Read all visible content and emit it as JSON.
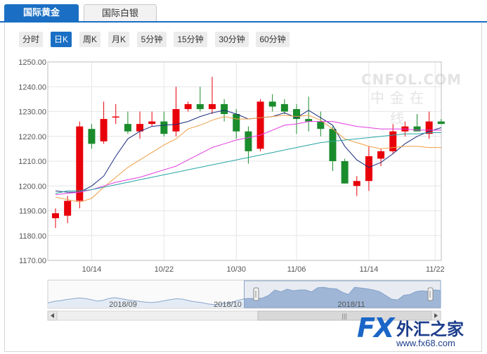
{
  "tabs": [
    {
      "label": "国际黄金",
      "active": true
    },
    {
      "label": "国际白银",
      "active": false
    }
  ],
  "periods": [
    {
      "label": "分时",
      "active": false
    },
    {
      "label": "日K",
      "active": true
    },
    {
      "label": "周K",
      "active": false
    },
    {
      "label": "月K",
      "active": false
    },
    {
      "label": "5分钟",
      "active": false
    },
    {
      "label": "15分钟",
      "active": false
    },
    {
      "label": "30分钟",
      "active": false
    },
    {
      "label": "60分钟",
      "active": false
    }
  ],
  "watermark": {
    "en": "CNFOL.COM",
    "cn": "中金在线"
  },
  "logo": {
    "fx": "FX",
    "cn": "外汇之家",
    "url": "www.fx68.com"
  },
  "colors": {
    "up": "#e8000b",
    "down": "#1a8c2c",
    "accent": "#1a6fc4",
    "ma5": "#1c2b7e",
    "ma10": "#f0a045",
    "ma20": "#e23be0",
    "ma60": "#27a5a5"
  },
  "chart_data": {
    "type": "candlestick",
    "ylim": [
      1170,
      1250
    ],
    "yticks": [
      1250,
      1240,
      1230,
      1220,
      1210,
      1200,
      1190,
      1180,
      1170
    ],
    "ytick_labels": [
      "1250.00",
      "1240.00",
      "1230.00",
      "1220.00",
      "1210.00",
      "1200.00",
      "1190.00",
      "1180.00",
      "1170.00"
    ],
    "xticks": [
      {
        "label": "10/14",
        "index": 3
      },
      {
        "label": "10/22",
        "index": 9
      },
      {
        "label": "10/30",
        "index": 15
      },
      {
        "label": "11/06",
        "index": 20
      },
      {
        "label": "11/14",
        "index": 26
      },
      {
        "label": "11/22",
        "index": 31.5
      }
    ],
    "grid": true,
    "candles": [
      {
        "o": 1187,
        "h": 1191,
        "l": 1183,
        "c": 1189
      },
      {
        "o": 1188,
        "h": 1196,
        "l": 1185,
        "c": 1194
      },
      {
        "o": 1194,
        "h": 1226,
        "l": 1191,
        "c": 1224
      },
      {
        "o": 1223,
        "h": 1225,
        "l": 1215,
        "c": 1217
      },
      {
        "o": 1218,
        "h": 1234,
        "l": 1217,
        "c": 1227
      },
      {
        "o": 1228,
        "h": 1233,
        "l": 1225,
        "c": 1228
      },
      {
        "o": 1225,
        "h": 1230,
        "l": 1221,
        "c": 1222
      },
      {
        "o": 1222,
        "h": 1230,
        "l": 1219,
        "c": 1225
      },
      {
        "o": 1225,
        "h": 1230,
        "l": 1224,
        "c": 1226
      },
      {
        "o": 1226,
        "h": 1230,
        "l": 1220,
        "c": 1221
      },
      {
        "o": 1222,
        "h": 1240,
        "l": 1220,
        "c": 1231
      },
      {
        "o": 1231,
        "h": 1234,
        "l": 1230,
        "c": 1233
      },
      {
        "o": 1233,
        "h": 1240,
        "l": 1230,
        "c": 1231
      },
      {
        "o": 1231,
        "h": 1244,
        "l": 1229,
        "c": 1233
      },
      {
        "o": 1233,
        "h": 1235,
        "l": 1226,
        "c": 1229
      },
      {
        "o": 1229,
        "h": 1231,
        "l": 1219,
        "c": 1222
      },
      {
        "o": 1222,
        "h": 1224,
        "l": 1209,
        "c": 1214
      },
      {
        "o": 1215,
        "h": 1235,
        "l": 1214,
        "c": 1234
      },
      {
        "o": 1234,
        "h": 1237,
        "l": 1230,
        "c": 1232
      },
      {
        "o": 1233,
        "h": 1235,
        "l": 1229,
        "c": 1230
      },
      {
        "o": 1231,
        "h": 1233,
        "l": 1221,
        "c": 1227
      },
      {
        "o": 1227,
        "h": 1236,
        "l": 1222,
        "c": 1226
      },
      {
        "o": 1226,
        "h": 1230,
        "l": 1220,
        "c": 1223
      },
      {
        "o": 1223,
        "h": 1224,
        "l": 1206,
        "c": 1210
      },
      {
        "o": 1210,
        "h": 1211,
        "l": 1201,
        "c": 1201
      },
      {
        "o": 1200,
        "h": 1204,
        "l": 1196,
        "c": 1202
      },
      {
        "o": 1202,
        "h": 1216,
        "l": 1198,
        "c": 1212
      },
      {
        "o": 1211,
        "h": 1215,
        "l": 1208,
        "c": 1214
      },
      {
        "o": 1214,
        "h": 1225,
        "l": 1213,
        "c": 1222
      },
      {
        "o": 1222,
        "h": 1226,
        "l": 1220,
        "c": 1224
      },
      {
        "o": 1224,
        "h": 1229,
        "l": 1222,
        "c": 1222
      },
      {
        "o": 1221,
        "h": 1230,
        "l": 1219,
        "c": 1226
      },
      {
        "o": 1226,
        "h": 1227,
        "l": 1225,
        "c": 1225
      }
    ],
    "ma_lines": [
      {
        "key": "ma5",
        "values": [
          1198,
          1197.5,
          1197.5,
          1200,
          1204,
          1212,
          1219,
          1222,
          1224,
          1224.5,
          1224.8,
          1226,
          1228,
          1229.5,
          1230.5,
          1229,
          1227,
          1227.5,
          1228,
          1229.5,
          1227.5,
          1230.5,
          1227.5,
          1224.5,
          1216,
          1210.5,
          1207.5,
          1209.5,
          1213,
          1217,
          1220,
          1222,
          1223.5
        ]
      },
      {
        "key": "ma10",
        "values": [
          1195.5,
          1194.5,
          1193.5,
          1195,
          1199.5,
          1203.5,
          1207.5,
          1210.5,
          1213.5,
          1216.5,
          1219,
          1223,
          1224.5,
          1226.5,
          1228,
          1227,
          1227,
          1227.5,
          1228,
          1228.5,
          1228,
          1228.5,
          1226.5,
          1223,
          1219,
          1217.5,
          1216,
          1215,
          1215.5,
          1216,
          1216,
          1215.5,
          1215.5
        ]
      },
      {
        "key": "ma20",
        "values": [
          1196.5,
          1197,
          1197.5,
          1198.5,
          1200,
          1201.5,
          1202.5,
          1203.5,
          1205,
          1206.5,
          1208,
          1210.5,
          1213,
          1215.5,
          1217,
          1218.5,
          1219.5,
          1220.5,
          1222.5,
          1224.5,
          1225,
          1226,
          1226,
          1226,
          1225,
          1224,
          1223.5,
          1223,
          1223,
          1223,
          1222.5,
          1222.5,
          1222.5
        ]
      },
      {
        "key": "ma60",
        "values": [
          1197,
          1198,
          1198,
          1198.5,
          1199.5,
          1200.5,
          1201.5,
          1202.5,
          1203.5,
          1204.5,
          1205.5,
          1206.5,
          1207.5,
          1208.5,
          1209.5,
          1210.5,
          1211.5,
          1212.5,
          1213.5,
          1214.5,
          1215.5,
          1216.5,
          1217.5,
          1218,
          1218.5,
          1219,
          1219.5,
          1220,
          1220.5,
          1221,
          1221,
          1221.5,
          1221.5
        ]
      }
    ],
    "navigator": {
      "labels": [
        "2018/09",
        "2018/10",
        "2018/11"
      ],
      "series": [
        1192,
        1196,
        1198,
        1201,
        1203,
        1205,
        1204,
        1201,
        1197,
        1199,
        1204,
        1206,
        1203,
        1200,
        1198,
        1196,
        1194,
        1193,
        1195,
        1198,
        1201,
        1203,
        1202,
        1198,
        1195,
        1193,
        1190,
        1188,
        1189,
        1191,
        1194,
        1199,
        1203,
        1204,
        1203,
        1205,
        1212,
        1226,
        1221,
        1228,
        1224,
        1226,
        1226,
        1221,
        1232,
        1233,
        1230,
        1229,
        1220,
        1214,
        1233,
        1231,
        1229,
        1226,
        1222,
        1212,
        1202,
        1200,
        1212,
        1214,
        1222,
        1224,
        1222,
        1226,
        1225
      ],
      "window_start_index": 32
    }
  }
}
